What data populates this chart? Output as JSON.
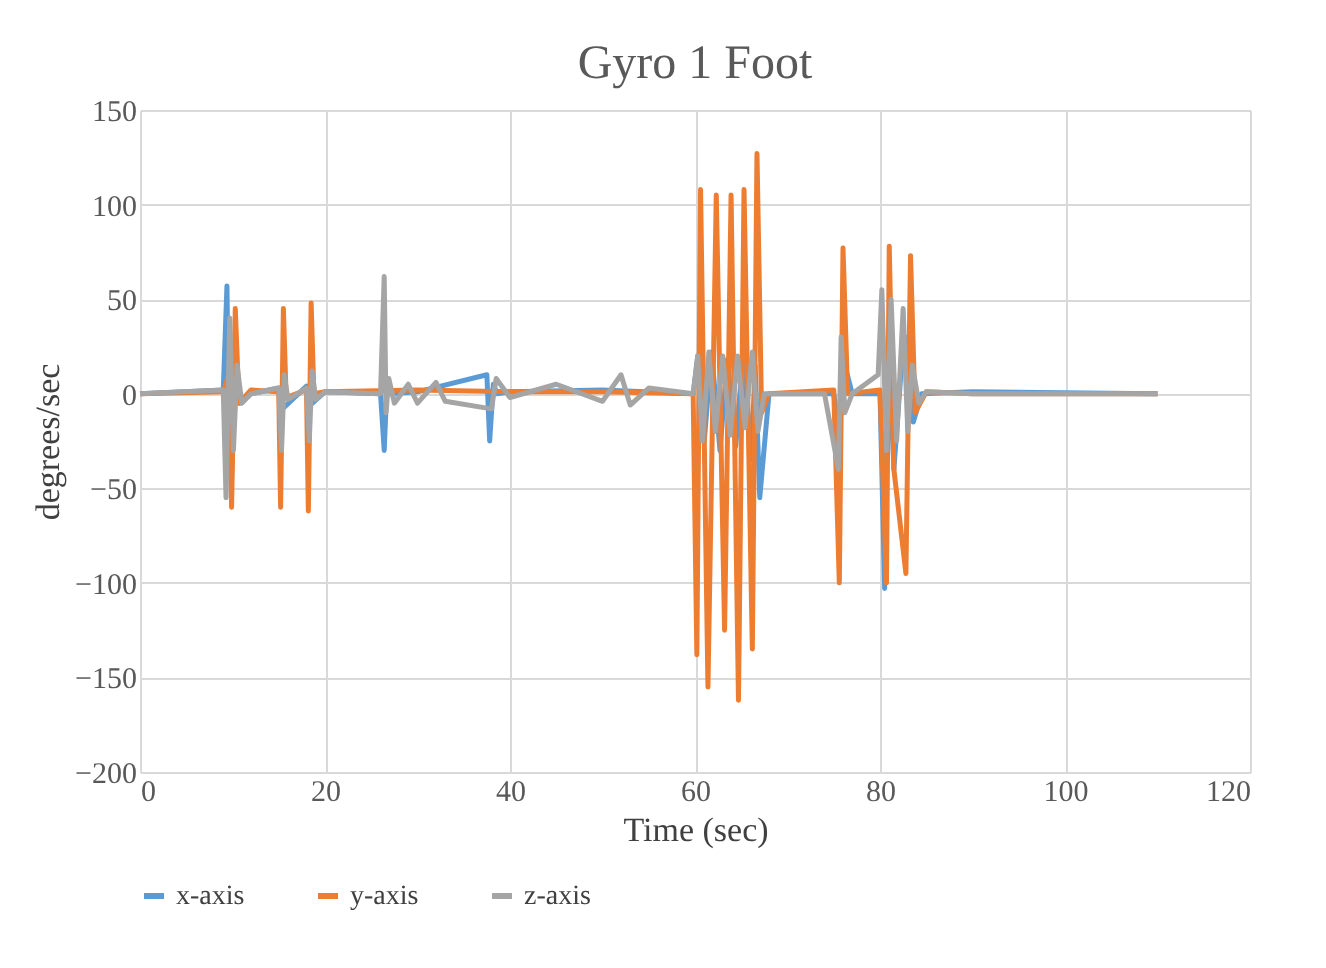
{
  "chart_data": {
    "type": "line",
    "title": "Gyro 1 Foot",
    "xlabel": "Time (sec)",
    "ylabel": "degrees/sec",
    "xlim": [
      0,
      120
    ],
    "xticks": [
      0,
      20,
      40,
      60,
      80,
      100,
      120
    ],
    "ylim": [
      -200,
      150
    ],
    "yticks": [
      -200,
      -150,
      -100,
      -50,
      0,
      50,
      100,
      150
    ],
    "grid": true,
    "legend": "bottom",
    "marker": "none",
    "line_style": "solid",
    "series": [
      {
        "name": "x-axis",
        "color": "#5b9bd5",
        "x": [
          0,
          9,
          9.4,
          9.6,
          9.9,
          10.3,
          10.8,
          12,
          15,
          15.4,
          18,
          18.4,
          20,
          26,
          26.4,
          26.7,
          27,
          30,
          37.5,
          37.8,
          38.2,
          38.6,
          40,
          50,
          59.8,
          60.3,
          61,
          61.8,
          62.7,
          63.5,
          64.4,
          65.2,
          66.1,
          66.5,
          67,
          68,
          75,
          75.6,
          76.2,
          77,
          80,
          80.5,
          80.9,
          81.5,
          82.4,
          83,
          83.6,
          84.5,
          90,
          110
        ],
        "values": [
          0,
          2,
          57,
          -20,
          -45,
          20,
          -5,
          0,
          3,
          -8,
          4,
          -6,
          1,
          0,
          -30,
          5,
          0,
          1,
          10,
          -25,
          5,
          0,
          1,
          2,
          0,
          20,
          -25,
          22,
          -30,
          18,
          -28,
          22,
          -35,
          15,
          -55,
          0,
          0,
          -20,
          15,
          0,
          0,
          -103,
          30,
          -40,
          20,
          30,
          -15,
          0,
          1,
          0
        ]
      },
      {
        "name": "y-axis",
        "color": "#ed7d31",
        "x": [
          0,
          9,
          9.6,
          9.9,
          10.3,
          10.7,
          12,
          15,
          15.2,
          15.5,
          15.8,
          18,
          18.2,
          18.5,
          18.8,
          20,
          30,
          40,
          50,
          59.8,
          60.2,
          60.6,
          61.4,
          62.3,
          63.2,
          63.9,
          64.7,
          65.3,
          66.2,
          66.7,
          67.2,
          68,
          75,
          75.6,
          76,
          76.5,
          80,
          80.7,
          81,
          81.5,
          82.8,
          83.3,
          83.8,
          85,
          90,
          110
        ],
        "values": [
          0,
          1,
          10,
          -60,
          45,
          -5,
          2,
          1,
          -60,
          45,
          -2,
          2,
          -62,
          48,
          0,
          1,
          2,
          1,
          1,
          0,
          -138,
          108,
          -155,
          105,
          -125,
          105,
          -162,
          108,
          -135,
          127,
          -10,
          0,
          2,
          -100,
          77,
          0,
          2,
          -100,
          78,
          -40,
          -95,
          73,
          -10,
          1,
          0,
          0
        ]
      },
      {
        "name": "z-axis",
        "color": "#a5a5a5",
        "x": [
          0,
          9,
          9.3,
          9.7,
          10.1,
          10.5,
          11,
          12,
          15,
          15.3,
          15.6,
          16,
          18,
          18.3,
          18.6,
          19,
          20,
          26,
          26.4,
          26.6,
          26.9,
          27.5,
          29,
          30,
          32,
          33,
          38,
          38.5,
          40,
          45,
          50,
          52,
          53,
          55,
          59.8,
          60.3,
          60.8,
          61.5,
          62.2,
          63,
          63.8,
          64.6,
          65.4,
          66.2,
          66.8,
          67.5,
          74,
          75.5,
          75.8,
          76.2,
          77,
          79.8,
          80.2,
          80.7,
          81.2,
          81.8,
          82.5,
          83,
          83.5,
          84.2,
          85,
          90,
          110
        ],
        "values": [
          0,
          2,
          -55,
          40,
          -30,
          15,
          -5,
          0,
          3,
          -30,
          10,
          -3,
          3,
          -25,
          12,
          -3,
          1,
          0,
          62,
          -10,
          8,
          -5,
          5,
          -5,
          6,
          -4,
          -8,
          8,
          -2,
          5,
          -4,
          10,
          -6,
          3,
          0,
          20,
          -25,
          22,
          -20,
          20,
          -22,
          20,
          -18,
          22,
          -20,
          0,
          0,
          -40,
          30,
          -10,
          0,
          10,
          55,
          -30,
          50,
          -25,
          45,
          -20,
          15,
          -5,
          1,
          0,
          0
        ]
      }
    ]
  }
}
